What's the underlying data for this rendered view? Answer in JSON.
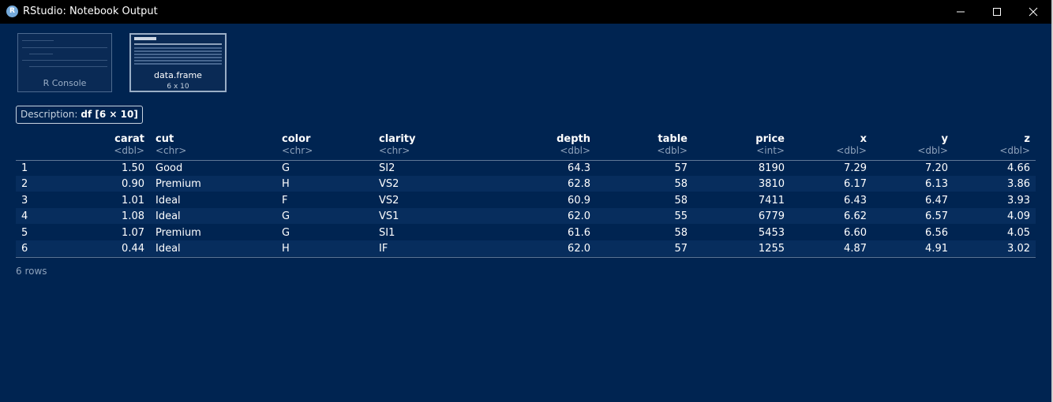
{
  "window": {
    "title": "RStudio: Notebook Output",
    "icon_letter": "R"
  },
  "thumbnails": [
    {
      "label": "R Console",
      "sub": ""
    },
    {
      "label": "data.frame",
      "sub": "6 x 10"
    }
  ],
  "description": {
    "label": "Description:",
    "value": "df [6 × 10]"
  },
  "table": {
    "columns": [
      {
        "name": "carat",
        "type": "<dbl>"
      },
      {
        "name": "cut",
        "type": "<chr>"
      },
      {
        "name": "color",
        "type": "<chr>"
      },
      {
        "name": "clarity",
        "type": "<chr>"
      },
      {
        "name": "depth",
        "type": "<dbl>"
      },
      {
        "name": "table",
        "type": "<dbl>"
      },
      {
        "name": "price",
        "type": "<int>"
      },
      {
        "name": "x",
        "type": "<dbl>"
      },
      {
        "name": "y",
        "type": "<dbl>"
      },
      {
        "name": "z",
        "type": "<dbl>"
      }
    ],
    "rows": [
      {
        "id": "1",
        "cells": [
          "1.50",
          "Good",
          "G",
          "SI2",
          "64.3",
          "57",
          "8190",
          "7.29",
          "7.20",
          "4.66"
        ]
      },
      {
        "id": "2",
        "cells": [
          "0.90",
          "Premium",
          "H",
          "VS2",
          "62.8",
          "58",
          "3810",
          "6.17",
          "6.13",
          "3.86"
        ]
      },
      {
        "id": "3",
        "cells": [
          "1.01",
          "Ideal",
          "F",
          "VS2",
          "60.9",
          "58",
          "7411",
          "6.43",
          "6.47",
          "3.93"
        ]
      },
      {
        "id": "4",
        "cells": [
          "1.08",
          "Ideal",
          "G",
          "VS1",
          "62.0",
          "55",
          "6779",
          "6.62",
          "6.57",
          "4.09"
        ]
      },
      {
        "id": "5",
        "cells": [
          "1.07",
          "Premium",
          "G",
          "SI1",
          "61.6",
          "58",
          "5453",
          "6.60",
          "6.56",
          "4.05"
        ]
      },
      {
        "id": "6",
        "cells": [
          "0.44",
          "Ideal",
          "H",
          "IF",
          "62.0",
          "57",
          "1255",
          "4.87",
          "4.91",
          "3.02"
        ]
      }
    ],
    "footer": "6 rows"
  },
  "colors": {
    "background": "#002451",
    "titlebar": "#000000",
    "text": "#ffffff",
    "muted": "#8ea2bb"
  }
}
